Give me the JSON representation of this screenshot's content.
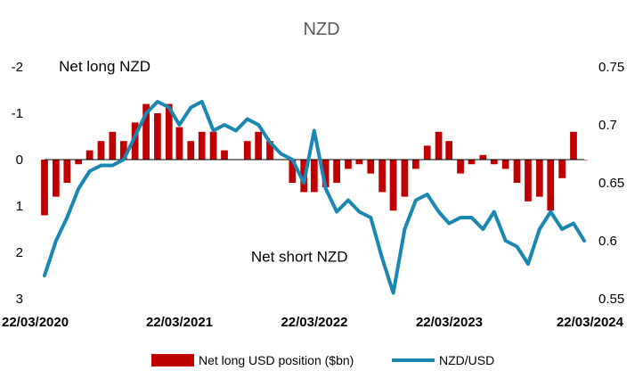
{
  "chart_data": {
    "type": "bar+line",
    "title": "NZD",
    "left_axis": {
      "ticks": [
        -2,
        -1,
        0,
        1,
        2,
        3
      ],
      "tick_labels": [
        "-2",
        "-1",
        "0",
        "1",
        "2",
        "3"
      ],
      "range": [
        -2,
        3
      ],
      "inverted": true
    },
    "right_axis": {
      "ticks": [
        0.75,
        0.7,
        0.65,
        0.6,
        0.55
      ],
      "tick_labels": [
        "0.75",
        "0.7",
        "0.65",
        "0.6",
        "0.55"
      ],
      "range": [
        0.55,
        0.75
      ]
    },
    "x_axis": {
      "start": "2020-03-22",
      "end": "2024-03-22",
      "tick_labels": [
        "22/03/2020",
        "22/03/2021",
        "22/03/2022",
        "22/03/2023",
        "22/03/2024"
      ]
    },
    "annotations": [
      {
        "text": "Net long NZD",
        "date": "2020-09-01",
        "value": -1.9
      },
      {
        "text": "Net short NZD",
        "date": "2022-02-10",
        "value": 2.2
      }
    ],
    "legend": {
      "placement": "bottom",
      "entries": [
        "Net long USD position ($bn)",
        "NZD/USD"
      ]
    },
    "colors": {
      "bars": "#c00000",
      "line": "#1a87b3",
      "zero_line": "#000000"
    },
    "series": [
      {
        "name": "Net long USD position ($bn)",
        "kind": "bar",
        "dates": [
          "2020-03-22",
          "2020-04-22",
          "2020-05-22",
          "2020-06-22",
          "2020-07-22",
          "2020-08-22",
          "2020-09-22",
          "2020-10-22",
          "2020-11-22",
          "2020-12-22",
          "2021-01-22",
          "2021-02-22",
          "2021-03-22",
          "2021-04-22",
          "2021-05-22",
          "2021-06-22",
          "2021-07-22",
          "2021-08-22",
          "2021-09-22",
          "2021-10-22",
          "2021-11-22",
          "2021-12-22",
          "2022-01-22",
          "2022-02-22",
          "2022-03-22",
          "2022-04-22",
          "2022-05-22",
          "2022-06-22",
          "2022-07-22",
          "2022-08-22",
          "2022-09-22",
          "2022-10-22",
          "2022-11-22",
          "2022-12-22",
          "2023-01-22",
          "2023-02-22",
          "2023-03-22",
          "2023-04-22",
          "2023-05-22",
          "2023-06-22",
          "2023-07-22",
          "2023-08-22",
          "2023-09-22",
          "2023-10-22",
          "2023-11-22",
          "2023-12-22",
          "2024-01-22",
          "2024-02-22",
          "2024-03-22"
        ],
        "values": [
          1.2,
          0.8,
          0.5,
          0.1,
          -0.2,
          -0.4,
          -0.6,
          -0.4,
          -0.8,
          -1.2,
          -1.0,
          -1.2,
          -0.7,
          -0.4,
          -0.6,
          -0.6,
          -0.2,
          0.0,
          -0.4,
          -0.6,
          -0.4,
          0.0,
          0.5,
          0.7,
          0.7,
          0.6,
          0.5,
          0.2,
          0.1,
          0.3,
          0.7,
          1.1,
          0.8,
          0.2,
          -0.3,
          -0.6,
          -0.4,
          0.3,
          0.1,
          -0.1,
          0.1,
          0.2,
          0.5,
          0.9,
          0.8,
          1.1,
          0.4,
          -0.6,
          0.0
        ]
      },
      {
        "name": "NZD/USD",
        "kind": "line",
        "dates": [
          "2020-03-22",
          "2020-04-22",
          "2020-05-22",
          "2020-06-22",
          "2020-07-22",
          "2020-08-22",
          "2020-09-22",
          "2020-10-22",
          "2020-11-22",
          "2020-12-22",
          "2021-01-22",
          "2021-02-22",
          "2021-03-22",
          "2021-04-22",
          "2021-05-22",
          "2021-06-22",
          "2021-07-22",
          "2021-08-22",
          "2021-09-22",
          "2021-10-22",
          "2021-11-22",
          "2021-12-22",
          "2022-01-22",
          "2022-02-22",
          "2022-03-22",
          "2022-04-22",
          "2022-05-22",
          "2022-06-22",
          "2022-07-22",
          "2022-08-22",
          "2022-09-22",
          "2022-10-22",
          "2022-11-22",
          "2022-12-22",
          "2023-01-22",
          "2023-02-22",
          "2023-03-22",
          "2023-04-22",
          "2023-05-22",
          "2023-06-22",
          "2023-07-22",
          "2023-08-22",
          "2023-09-22",
          "2023-10-22",
          "2023-11-22",
          "2023-12-22",
          "2024-01-22",
          "2024-02-22",
          "2024-03-22"
        ],
        "values": [
          0.57,
          0.6,
          0.62,
          0.645,
          0.66,
          0.665,
          0.665,
          0.67,
          0.69,
          0.71,
          0.72,
          0.715,
          0.7,
          0.715,
          0.72,
          0.695,
          0.7,
          0.695,
          0.705,
          0.7,
          0.685,
          0.675,
          0.67,
          0.65,
          0.695,
          0.645,
          0.625,
          0.635,
          0.625,
          0.62,
          0.585,
          0.555,
          0.61,
          0.635,
          0.64,
          0.625,
          0.615,
          0.62,
          0.62,
          0.61,
          0.625,
          0.6,
          0.595,
          0.58,
          0.61,
          0.625,
          0.61,
          0.615,
          0.6
        ]
      }
    ]
  }
}
